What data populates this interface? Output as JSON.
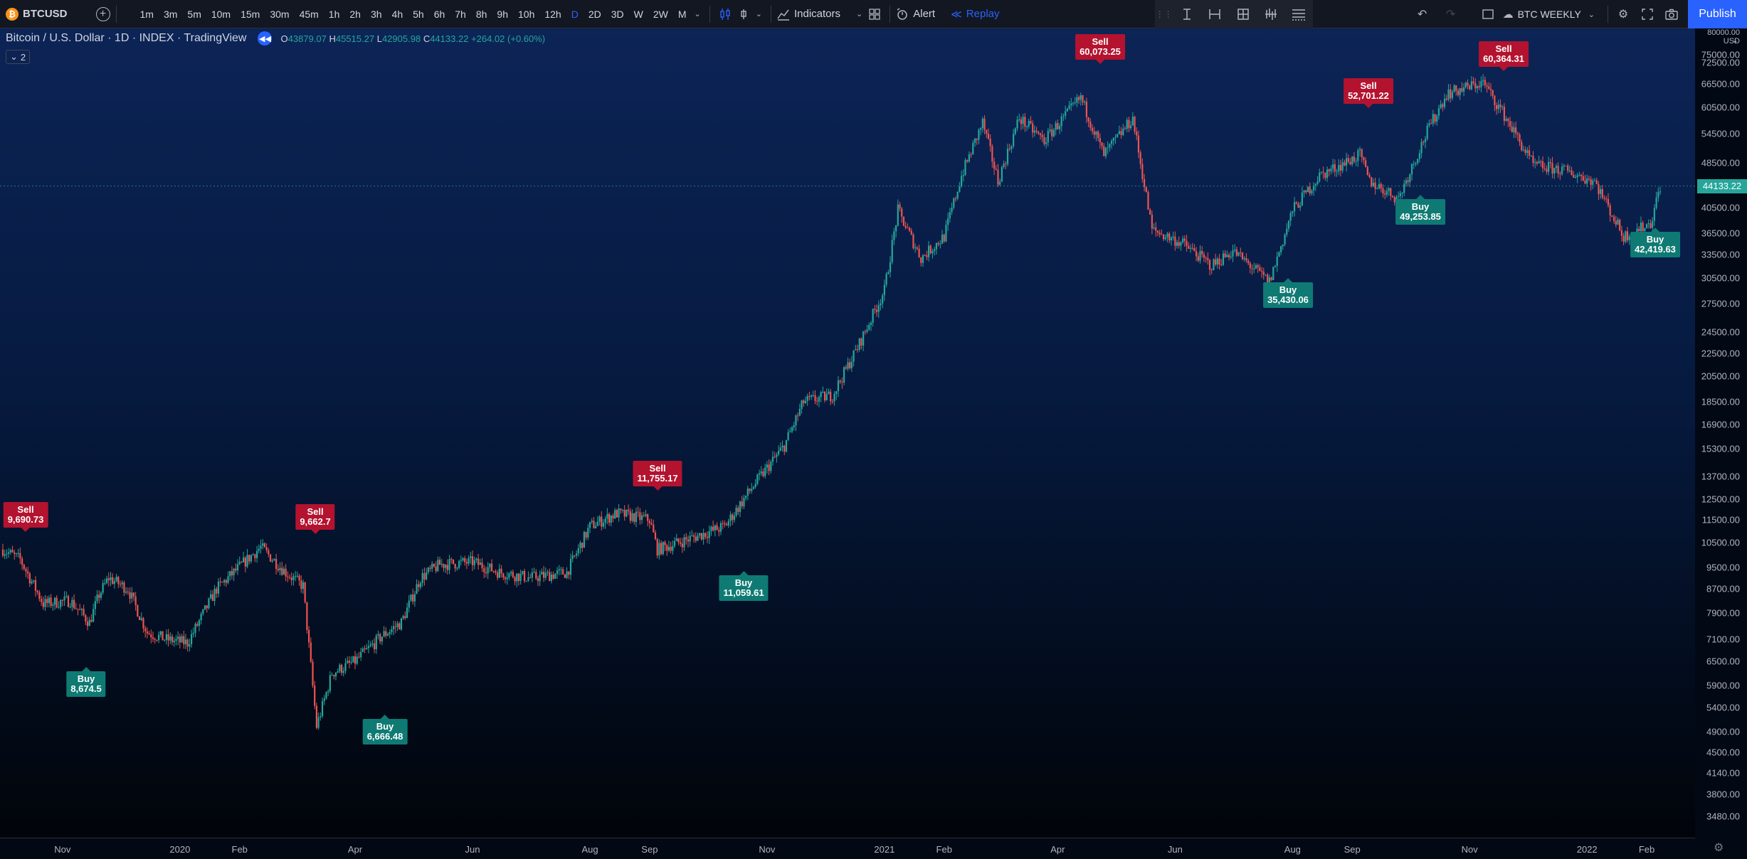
{
  "toolbar": {
    "symbol": "BTCUSD",
    "intervals": [
      "1m",
      "3m",
      "5m",
      "10m",
      "15m",
      "30m",
      "45m",
      "1h",
      "2h",
      "3h",
      "4h",
      "5h",
      "6h",
      "7h",
      "8h",
      "9h",
      "10h",
      "12h",
      "D",
      "2D",
      "3D",
      "W",
      "2W",
      "M"
    ],
    "active_interval": "D",
    "indicators_label": "Indicators",
    "alert_label": "Alert",
    "replay_label": "Replay",
    "layout_name": "BTC WEEKLY",
    "publish_label": "Publish"
  },
  "legend": {
    "title": "Bitcoin / U.S. Dollar · 1D · INDEX · TradingView",
    "open": "43879.07",
    "high": "45515.27",
    "low": "42905.98",
    "close": "44133.22",
    "change": "+264.02 (+0.60%)",
    "collapse_count": "2"
  },
  "yaxis": {
    "header_lines": [
      "80000.00",
      "USD"
    ],
    "ticks": [
      "75000.00",
      "72500.00",
      "66500.00",
      "60500.00",
      "54500.00",
      "48500.00",
      "40500.00",
      "36500.00",
      "33500.00",
      "30500.00",
      "27500.00",
      "24500.00",
      "22500.00",
      "20500.00",
      "18500.00",
      "16900.00",
      "15300.00",
      "13700.00",
      "12500.00",
      "11500.00",
      "10500.00",
      "9500.00",
      "8700.00",
      "7900.00",
      "7100.00",
      "6500.00",
      "5900.00",
      "5400.00",
      "4900.00",
      "4500.00",
      "4140.00",
      "3800.00",
      "3480.00"
    ],
    "last_price": "44133.22"
  },
  "xaxis": {
    "ticks": [
      "Nov",
      "2020",
      "Feb",
      "Apr",
      "Jun",
      "Aug",
      "Sep",
      "Nov",
      "2021",
      "Feb",
      "Apr",
      "Jun",
      "Aug",
      "Sep",
      "Nov",
      "2022",
      "Feb"
    ]
  },
  "colors": {
    "up": "#26a69a",
    "down": "#ef5350",
    "sell_label": "#b3132f",
    "buy_label": "#0f7a73",
    "accent": "#2962ff"
  },
  "chart_data": {
    "type": "candlestick",
    "symbol": "BTCUSD",
    "timeframe": "1D",
    "x_range": [
      "2019-10",
      "2022-02"
    ],
    "y_scale": "log",
    "ylim": [
      3480,
      80000
    ],
    "close_path": [
      [
        "2019-10-01",
        10200
      ],
      [
        "2019-10-10",
        9800
      ],
      [
        "2019-10-22",
        8200
      ],
      [
        "2019-11-05",
        8300
      ],
      [
        "2019-11-15",
        7600
      ],
      [
        "2019-11-20",
        8500
      ],
      [
        "2019-11-25",
        9100
      ],
      [
        "2019-12-05",
        8700
      ],
      [
        "2019-12-15",
        7300
      ],
      [
        "2019-12-25",
        7100
      ],
      [
        "2020-01-05",
        7000
      ],
      [
        "2020-01-20",
        8700
      ],
      [
        "2020-02-05",
        9800
      ],
      [
        "2020-02-12",
        10300
      ],
      [
        "2020-02-25",
        9300
      ],
      [
        "2020-03-05",
        8800
      ],
      [
        "2020-03-12",
        5000
      ],
      [
        "2020-03-20",
        6200
      ],
      [
        "2020-04-01",
        6500
      ],
      [
        "2020-04-15",
        7200
      ],
      [
        "2020-04-25",
        7600
      ],
      [
        "2020-05-05",
        9100
      ],
      [
        "2020-05-15",
        9600
      ],
      [
        "2020-06-01",
        9700
      ],
      [
        "2020-06-15",
        9300
      ],
      [
        "2020-07-01",
        9100
      ],
      [
        "2020-07-20",
        9300
      ],
      [
        "2020-08-01",
        11200
      ],
      [
        "2020-08-15",
        11800
      ],
      [
        "2020-09-01",
        11500
      ],
      [
        "2020-09-05",
        10200
      ],
      [
        "2020-09-20",
        10600
      ],
      [
        "2020-10-10",
        11200
      ],
      [
        "2020-10-25",
        13200
      ],
      [
        "2020-11-10",
        15500
      ],
      [
        "2020-11-20",
        18500
      ],
      [
        "2020-12-05",
        19000
      ],
      [
        "2020-12-18",
        23000
      ],
      [
        "2021-01-01",
        29000
      ],
      [
        "2021-01-08",
        40000
      ],
      [
        "2021-01-20",
        33000
      ],
      [
        "2021-02-01",
        36000
      ],
      [
        "2021-02-10",
        46000
      ],
      [
        "2021-02-21",
        57000
      ],
      [
        "2021-03-01",
        45000
      ],
      [
        "2021-03-12",
        58000
      ],
      [
        "2021-03-25",
        53000
      ],
      [
        "2021-04-13",
        63000
      ],
      [
        "2021-04-25",
        50000
      ],
      [
        "2021-05-10",
        58000
      ],
      [
        "2021-05-20",
        37000
      ],
      [
        "2021-06-05",
        35000
      ],
      [
        "2021-06-20",
        32000
      ],
      [
        "2021-07-01",
        34000
      ],
      [
        "2021-07-20",
        30000
      ],
      [
        "2021-08-01",
        40000
      ],
      [
        "2021-08-15",
        46000
      ],
      [
        "2021-09-05",
        50000
      ],
      [
        "2021-09-10",
        45000
      ],
      [
        "2021-09-25",
        42000
      ],
      [
        "2021-10-10",
        55000
      ],
      [
        "2021-10-20",
        64000
      ],
      [
        "2021-11-08",
        67000
      ],
      [
        "2021-11-20",
        58000
      ],
      [
        "2021-12-04",
        48000
      ],
      [
        "2021-12-20",
        47000
      ],
      [
        "2022-01-05",
        45000
      ],
      [
        "2022-01-20",
        36000
      ],
      [
        "2022-02-03",
        38000
      ],
      [
        "2022-02-08",
        44133
      ]
    ],
    "signals": [
      {
        "type": "Sell",
        "price": "9,690.73",
        "date": "2019-10-01"
      },
      {
        "type": "Buy",
        "price": "8,674.5",
        "date": "2019-11-15"
      },
      {
        "type": "Sell",
        "price": "9,662.7",
        "date": "2020-02-10"
      },
      {
        "type": "Buy",
        "price": "6,666.48",
        "date": "2020-03-20"
      },
      {
        "type": "Sell",
        "price": "11,755.17",
        "date": "2020-08-17"
      },
      {
        "type": "Buy",
        "price": "11,059.61",
        "date": "2020-09-25"
      },
      {
        "type": "Sell",
        "price": "60,073.25",
        "date": "2021-04-13"
      },
      {
        "type": "Buy",
        "price": "35,430.06",
        "date": "2021-07-20"
      },
      {
        "type": "Sell",
        "price": "52,701.22",
        "date": "2021-09-06"
      },
      {
        "type": "Buy",
        "price": "49,253.85",
        "date": "2021-10-01"
      },
      {
        "type": "Sell",
        "price": "60,364.31",
        "date": "2021-11-09"
      },
      {
        "type": "Buy",
        "price": "42,419.63",
        "date": "2022-02-04"
      }
    ]
  }
}
